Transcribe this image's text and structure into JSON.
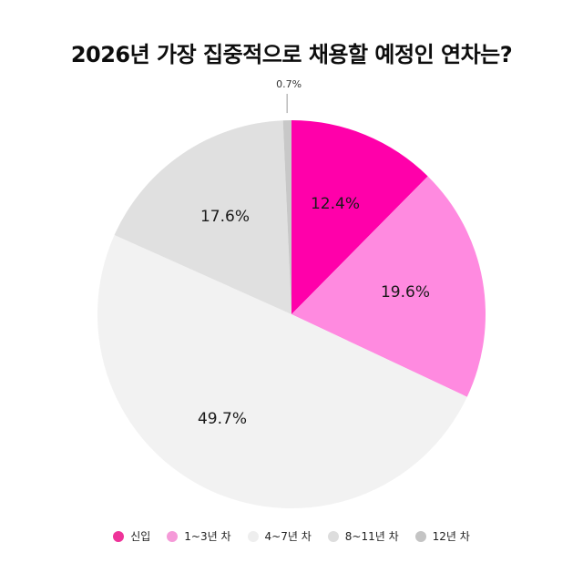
{
  "title": "2026년 가장 집중적으로 채용할 예정인 연차는?",
  "chart_data": {
    "type": "pie",
    "title": "2026년 가장 집중적으로 채용할 예정인 연차는?",
    "categories": [
      "신입",
      "1~3년 차",
      "4~7년 차",
      "8~11년 차",
      "12년 차"
    ],
    "values": [
      12.4,
      19.6,
      49.7,
      17.6,
      0.7
    ],
    "labels": [
      "12.4%",
      "19.6%",
      "49.7%",
      "17.6%",
      "0.7%"
    ],
    "colors": [
      "#ff00aa",
      "#ff8ae0",
      "#f2f2f2",
      "#e0e0e0",
      "#c8c8c8"
    ],
    "start_angle_deg": 0,
    "direction": "clockwise",
    "legend_position": "bottom"
  },
  "legend": [
    {
      "label": "신입",
      "color": "#ee3399"
    },
    {
      "label": "1~3년 차",
      "color": "#f59ad8"
    },
    {
      "label": "4~7년 차",
      "color": "#eeeeee"
    },
    {
      "label": "8~11년 차",
      "color": "#dddddd"
    },
    {
      "label": "12년 차",
      "color": "#c4c4c4"
    }
  ]
}
